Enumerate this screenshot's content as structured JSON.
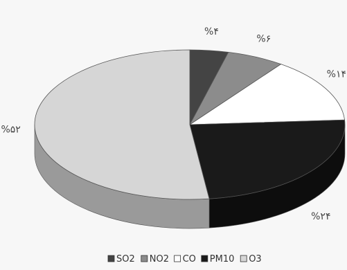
{
  "chart_data": {
    "type": "pie",
    "title": "",
    "style": "3d",
    "legend_position": "bottom",
    "categories": [
      "SO2",
      "NO2",
      "CO",
      "PM10",
      "O3"
    ],
    "values": [
      4,
      6,
      14,
      24,
      52
    ],
    "labels": [
      "%۴",
      "%۶",
      "%۱۴",
      "%۲۴",
      "%۵۲"
    ],
    "colors": [
      "#444444",
      "#8c8c8c",
      "#ffffff",
      "#1a1a1a",
      "#d6d6d6"
    ],
    "side_colors": [
      "#2e2e2e",
      "#6e6e6e",
      "#cfcfcf",
      "#0d0d0d",
      "#9a9a9a"
    ]
  }
}
